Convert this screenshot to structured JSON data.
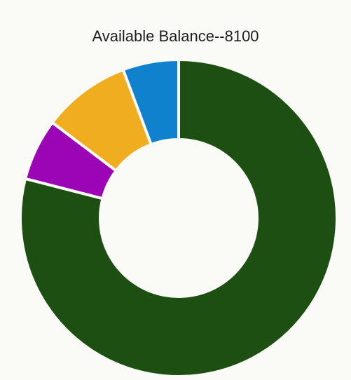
{
  "chart_data": {
    "type": "pie",
    "title": "Available Balance--8100",
    "donut": true,
    "slices": [
      {
        "value": 79.0,
        "color": "#1e4f12"
      },
      {
        "value": 6.3,
        "color": "#9b05b5"
      },
      {
        "value": 9.0,
        "color": "#efad1f"
      },
      {
        "value": 5.7,
        "color": "#1081cc"
      }
    ]
  }
}
